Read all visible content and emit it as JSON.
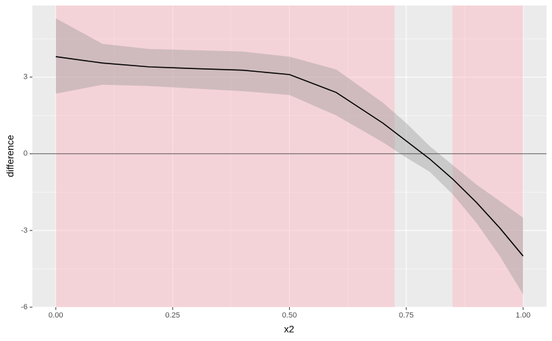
{
  "chart_data": {
    "type": "line",
    "x": [
      0,
      0.1,
      0.2,
      0.3,
      0.4,
      0.5,
      0.6,
      0.7,
      0.75,
      0.8,
      0.85,
      0.9,
      0.95,
      1.0
    ],
    "values": [
      3.8,
      3.55,
      3.4,
      3.33,
      3.27,
      3.1,
      2.4,
      1.2,
      0.5,
      -0.2,
      -1.0,
      -1.9,
      -2.9,
      -4.0
    ],
    "upper": [
      5.3,
      4.3,
      4.1,
      4.05,
      4.0,
      3.8,
      3.3,
      2.0,
      1.2,
      0.3,
      -0.45,
      -1.2,
      -1.85,
      -2.5
    ],
    "lower": [
      2.35,
      2.7,
      2.65,
      2.55,
      2.45,
      2.3,
      1.5,
      0.45,
      -0.15,
      -0.7,
      -1.6,
      -2.7,
      -4.0,
      -5.5
    ],
    "color": "#000000",
    "band_color": "#999999",
    "shaded_regions": [
      [
        0,
        0.725
      ],
      [
        0.849,
        1.0
      ]
    ],
    "region_color": "#ffb6c1",
    "hline": 0,
    "xlabel": "x2",
    "ylabel": "difference",
    "xlim": [
      -0.05,
      1.05
    ],
    "ylim": [
      -6,
      5.8
    ],
    "xticks": [
      {
        "value": 0,
        "label": "0.00"
      },
      0.25,
      {
        "value": 0.5,
        "label": "0.50"
      },
      0.75,
      {
        "value": 1,
        "label": "1.00"
      }
    ],
    "yticks": [
      -6,
      -3,
      0,
      3
    ],
    "x_minor_grid": [
      0.125,
      0.375,
      0.625,
      0.875
    ],
    "y_minor_grid": [
      -4.5,
      -1.5,
      1.5,
      4.5
    ],
    "grid": true
  }
}
